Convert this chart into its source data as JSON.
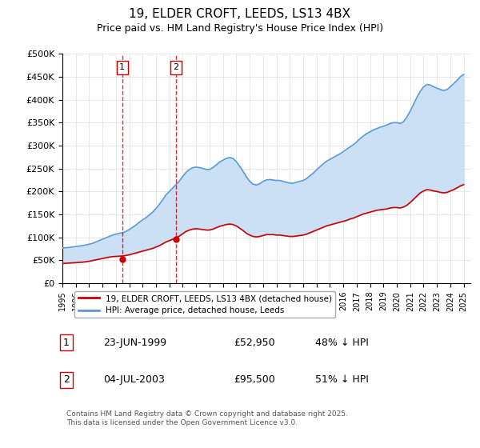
{
  "title": "19, ELDER CROFT, LEEDS, LS13 4BX",
  "subtitle": "Price paid vs. HM Land Registry's House Price Index (HPI)",
  "legend_line1": "19, ELDER CROFT, LEEDS, LS13 4BX (detached house)",
  "legend_line2": "HPI: Average price, detached house, Leeds",
  "footer": "Contains HM Land Registry data © Crown copyright and database right 2025.\nThis data is licensed under the Open Government Licence v3.0.",
  "table_rows": [
    {
      "num": "1",
      "date": "23-JUN-1999",
      "price": "£52,950",
      "hpi": "48% ↓ HPI"
    },
    {
      "num": "2",
      "date": "04-JUL-2003",
      "price": "£95,500",
      "hpi": "51% ↓ HPI"
    }
  ],
  "sale1_x": 1999.47,
  "sale1_y": 52950,
  "sale2_x": 2003.5,
  "sale2_y": 95500,
  "ylim": [
    0,
    500000
  ],
  "xlim": [
    1995,
    2025.5
  ],
  "yticks": [
    0,
    50000,
    100000,
    150000,
    200000,
    250000,
    300000,
    350000,
    400000,
    450000,
    500000
  ],
  "ytick_labels": [
    "£0",
    "£50K",
    "£100K",
    "£150K",
    "£200K",
    "£250K",
    "£300K",
    "£350K",
    "£400K",
    "£450K",
    "£500K"
  ],
  "red_color": "#cc0000",
  "blue_color": "#5b9bd5",
  "fill_color": "#cce0f5",
  "hpi_data_x": [
    1995.0,
    1995.25,
    1995.5,
    1995.75,
    1996.0,
    1996.25,
    1996.5,
    1996.75,
    1997.0,
    1997.25,
    1997.5,
    1997.75,
    1998.0,
    1998.25,
    1998.5,
    1998.75,
    1999.0,
    1999.25,
    1999.5,
    1999.75,
    2000.0,
    2000.25,
    2000.5,
    2000.75,
    2001.0,
    2001.25,
    2001.5,
    2001.75,
    2002.0,
    2002.25,
    2002.5,
    2002.75,
    2003.0,
    2003.25,
    2003.5,
    2003.75,
    2004.0,
    2004.25,
    2004.5,
    2004.75,
    2005.0,
    2005.25,
    2005.5,
    2005.75,
    2006.0,
    2006.25,
    2006.5,
    2006.75,
    2007.0,
    2007.25,
    2007.5,
    2007.75,
    2008.0,
    2008.25,
    2008.5,
    2008.75,
    2009.0,
    2009.25,
    2009.5,
    2009.75,
    2010.0,
    2010.25,
    2010.5,
    2010.75,
    2011.0,
    2011.25,
    2011.5,
    2011.75,
    2012.0,
    2012.25,
    2012.5,
    2012.75,
    2013.0,
    2013.25,
    2013.5,
    2013.75,
    2014.0,
    2014.25,
    2014.5,
    2014.75,
    2015.0,
    2015.25,
    2015.5,
    2015.75,
    2016.0,
    2016.25,
    2016.5,
    2016.75,
    2017.0,
    2017.25,
    2017.5,
    2017.75,
    2018.0,
    2018.25,
    2018.5,
    2018.75,
    2019.0,
    2019.25,
    2019.5,
    2019.75,
    2020.0,
    2020.25,
    2020.5,
    2020.75,
    2021.0,
    2021.25,
    2021.5,
    2021.75,
    2022.0,
    2022.25,
    2022.5,
    2022.75,
    2023.0,
    2023.25,
    2023.5,
    2023.75,
    2024.0,
    2024.25,
    2024.5,
    2024.75,
    2025.0
  ],
  "hpi_data_y": [
    77000,
    77500,
    78000,
    79000,
    80000,
    81000,
    82000,
    83500,
    85000,
    87000,
    90000,
    93000,
    96000,
    99000,
    102000,
    105000,
    107000,
    109000,
    110000,
    113000,
    117000,
    122000,
    127000,
    133000,
    138000,
    143000,
    149000,
    155000,
    163000,
    172000,
    182000,
    193000,
    200000,
    208000,
    215000,
    223000,
    233000,
    242000,
    248000,
    252000,
    253000,
    252000,
    250000,
    248000,
    248000,
    252000,
    258000,
    264000,
    268000,
    272000,
    274000,
    272000,
    265000,
    255000,
    244000,
    232000,
    222000,
    216000,
    214000,
    217000,
    222000,
    225000,
    226000,
    225000,
    224000,
    224000,
    222000,
    220000,
    218000,
    218000,
    220000,
    222000,
    224000,
    228000,
    234000,
    240000,
    247000,
    254000,
    260000,
    266000,
    270000,
    274000,
    278000,
    282000,
    287000,
    292000,
    297000,
    302000,
    308000,
    315000,
    321000,
    326000,
    330000,
    334000,
    337000,
    340000,
    342000,
    345000,
    348000,
    350000,
    350000,
    348000,
    352000,
    362000,
    375000,
    390000,
    405000,
    418000,
    428000,
    433000,
    432000,
    428000,
    425000,
    422000,
    420000,
    422000,
    428000,
    435000,
    442000,
    450000,
    455000
  ],
  "red_data_x": [
    1995.0,
    1995.25,
    1995.5,
    1995.75,
    1996.0,
    1996.25,
    1996.5,
    1996.75,
    1997.0,
    1997.25,
    1997.5,
    1997.75,
    1998.0,
    1998.25,
    1998.5,
    1998.75,
    1999.0,
    1999.25,
    1999.5,
    1999.75,
    2000.0,
    2000.25,
    2000.5,
    2000.75,
    2001.0,
    2001.25,
    2001.5,
    2001.75,
    2002.0,
    2002.25,
    2002.5,
    2002.75,
    2003.0,
    2003.25,
    2003.5,
    2003.75,
    2004.0,
    2004.25,
    2004.5,
    2004.75,
    2005.0,
    2005.25,
    2005.5,
    2005.75,
    2006.0,
    2006.25,
    2006.5,
    2006.75,
    2007.0,
    2007.25,
    2007.5,
    2007.75,
    2008.0,
    2008.25,
    2008.5,
    2008.75,
    2009.0,
    2009.25,
    2009.5,
    2009.75,
    2010.0,
    2010.25,
    2010.5,
    2010.75,
    2011.0,
    2011.25,
    2011.5,
    2011.75,
    2012.0,
    2012.25,
    2012.5,
    2012.75,
    2013.0,
    2013.25,
    2013.5,
    2013.75,
    2014.0,
    2014.25,
    2014.5,
    2014.75,
    2015.0,
    2015.25,
    2015.5,
    2015.75,
    2016.0,
    2016.25,
    2016.5,
    2016.75,
    2017.0,
    2017.25,
    2017.5,
    2017.75,
    2018.0,
    2018.25,
    2018.5,
    2018.75,
    2019.0,
    2019.25,
    2019.5,
    2019.75,
    2020.0,
    2020.25,
    2020.5,
    2020.75,
    2021.0,
    2021.25,
    2021.5,
    2021.75,
    2022.0,
    2022.25,
    2022.5,
    2022.75,
    2023.0,
    2023.25,
    2023.5,
    2023.75,
    2024.0,
    2024.25,
    2024.5,
    2024.75,
    2025.0
  ],
  "red_data_y": [
    43000,
    43500,
    44000,
    44500,
    45000,
    45500,
    46000,
    46800,
    48000,
    49500,
    51000,
    52500,
    54000,
    55500,
    57000,
    58000,
    58500,
    59000,
    59500,
    60500,
    62000,
    64000,
    66000,
    68000,
    70000,
    72000,
    74000,
    76000,
    79000,
    82000,
    86000,
    90000,
    93000,
    96000,
    99000,
    103000,
    108000,
    113000,
    116000,
    118000,
    119000,
    118000,
    117000,
    116000,
    116000,
    118000,
    121000,
    124000,
    126000,
    128000,
    129000,
    128000,
    125000,
    120000,
    115000,
    109000,
    105000,
    102000,
    101000,
    102000,
    104000,
    106000,
    106000,
    106000,
    105000,
    105000,
    104000,
    103000,
    102000,
    102000,
    103000,
    104000,
    105000,
    107000,
    110000,
    113000,
    116000,
    119000,
    122000,
    125000,
    127000,
    129000,
    131000,
    133000,
    135000,
    137000,
    140000,
    142000,
    145000,
    148000,
    151000,
    153000,
    155000,
    157000,
    159000,
    160000,
    161000,
    162000,
    164000,
    165000,
    165000,
    164000,
    166000,
    170000,
    176000,
    183000,
    190000,
    197000,
    201000,
    204000,
    203000,
    201000,
    200000,
    198000,
    197000,
    198000,
    201000,
    204000,
    208000,
    212000,
    215000
  ]
}
